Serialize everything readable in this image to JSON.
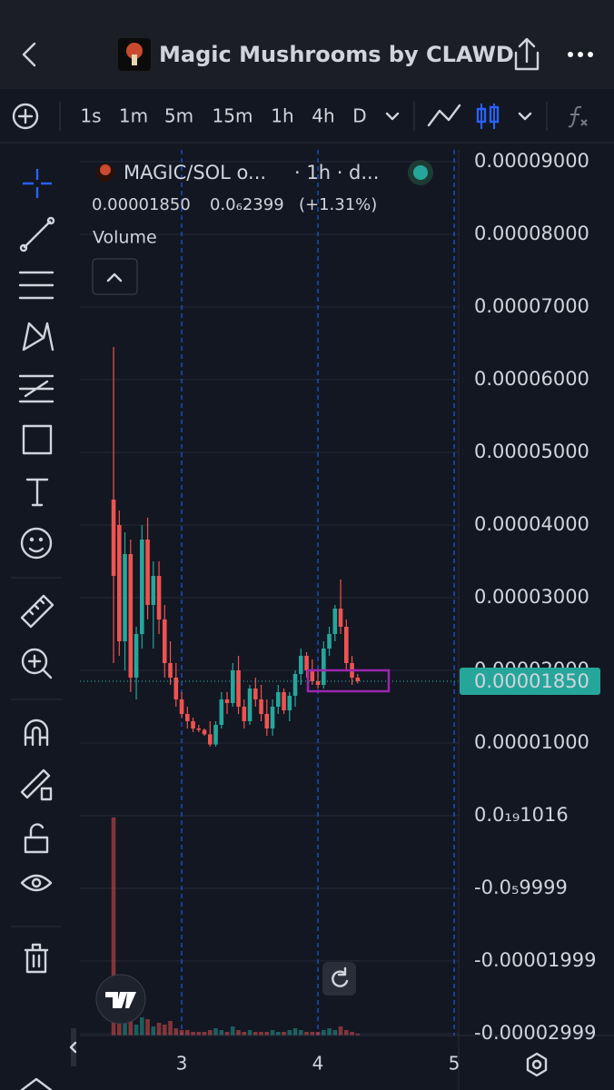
{
  "header": {
    "title": "Magic Mushrooms by CLAWD"
  },
  "toolbar": {
    "intervals": [
      {
        "label": "1s",
        "color": "#d1d4dc"
      },
      {
        "label": "1m",
        "color": "#d1d4dc"
      },
      {
        "label": "5m",
        "color": "#d1d4dc"
      },
      {
        "label": "15m",
        "color": "#d1d4dc"
      },
      {
        "label": "1h",
        "color": "#2962ff"
      },
      {
        "label": "4h",
        "color": "#d1d4dc"
      },
      {
        "label": "D",
        "color": "#d1d4dc"
      }
    ]
  },
  "chart_data": {
    "type": "candlestick",
    "symbol": "MAGIC/SOL o...",
    "timeframe": "· 1h · d...",
    "last": {
      "value": 1.85e-05,
      "label": "0.00001850"
    },
    "change": {
      "value": 2.399e-07,
      "label": "0.0₆2399"
    },
    "change_pct": {
      "value": 1.31,
      "label": "(+1.31%)"
    },
    "volume_title": "Volume",
    "price_tag": {
      "value": 1.85e-05,
      "label": "0.00001850",
      "color": "#26a69a"
    },
    "up_color": "#26a69a",
    "down_color": "#ef5350",
    "x": [
      2.5,
      2.5417,
      2.5833,
      2.625,
      2.6667,
      2.7083,
      2.75,
      2.7917,
      2.8333,
      2.875,
      2.9167,
      2.9583,
      3,
      3.0417,
      3.0833,
      3.125,
      3.1667,
      3.2083,
      3.25,
      3.2917,
      3.3333,
      3.375,
      3.4167,
      3.4583,
      3.5,
      3.5417,
      3.5833,
      3.625,
      3.6667,
      3.7083,
      3.75,
      3.7917,
      3.8333,
      3.875,
      3.9167,
      3.9583,
      4,
      4.0417,
      4.0833,
      4.125,
      4.1667,
      4.2083,
      4.25,
      4.2917
    ],
    "open": [
      4.35e-05,
      4e-05,
      2.4e-05,
      3.6e-05,
      1.9e-05,
      2.5e-05,
      3.8e-05,
      2.9e-05,
      3.3e-05,
      2.7e-05,
      2.1e-05,
      1.9e-05,
      1.6e-05,
      1.4e-05,
      1.3e-05,
      1.2e-05,
      1.18e-05,
      1.12e-05,
      9.8e-06,
      1.25e-05,
      1.6e-05,
      1.55e-05,
      2e-05,
      1.5e-05,
      1.3e-05,
      1.75e-05,
      1.6e-05,
      1.4e-05,
      1.2e-05,
      1.5e-05,
      1.7e-05,
      1.45e-05,
      1.65e-05,
      1.95e-05,
      2.2e-05,
      2e-05,
      1.85e-05,
      1.8e-05,
      2.3e-05,
      2.5e-05,
      2.85e-05,
      2.6e-05,
      2.1e-05,
      1.9e-05
    ],
    "high": [
      6.45e-05,
      4.2e-05,
      3.9e-05,
      3.8e-05,
      2.6e-05,
      4e-05,
      4.1e-05,
      3.5e-05,
      3.5e-05,
      2.9e-05,
      2.4e-05,
      2.1e-05,
      1.7e-05,
      1.5e-05,
      1.35e-05,
      1.25e-05,
      1.2e-05,
      1.3e-05,
      1.3e-05,
      1.7e-05,
      1.7e-05,
      2.1e-05,
      2.2e-05,
      1.6e-05,
      1.8e-05,
      1.9e-05,
      1.8e-05,
      1.6e-05,
      1.6e-05,
      1.8e-05,
      1.75e-05,
      1.7e-05,
      2e-05,
      2.3e-05,
      2.25e-05,
      2.15e-05,
      2e-05,
      2.4e-05,
      2.6e-05,
      2.9e-05,
      3.25e-05,
      2.7e-05,
      2.2e-05,
      1.95e-05
    ],
    "low": [
      2.1e-05,
      2.2e-05,
      2e-05,
      1.7e-05,
      1.6e-05,
      2.3e-05,
      2.7e-05,
      2.3e-05,
      2.5e-05,
      1.9e-05,
      1.8e-05,
      1.5e-05,
      1.35e-05,
      1.2e-05,
      1.15e-05,
      1.15e-05,
      1.1e-05,
      9.5e-06,
      9.5e-06,
      1.2e-05,
      1.4e-05,
      1.5e-05,
      1.4e-05,
      1.2e-05,
      1.25e-05,
      1.5e-05,
      1.3e-05,
      1.1e-05,
      1.1e-05,
      1.4e-05,
      1.4e-05,
      1.3e-05,
      1.5e-05,
      1.8e-05,
      1.9e-05,
      1.8e-05,
      1.75e-05,
      1.75e-05,
      2.2e-05,
      2.4e-05,
      2.5e-05,
      2e-05,
      1.8e-05,
      1.82e-05
    ],
    "close": [
      3.3e-05,
      2.4e-05,
      3.6e-05,
      1.9e-05,
      2.5e-05,
      3.8e-05,
      2.9e-05,
      3.3e-05,
      2.7e-05,
      2.1e-05,
      1.9e-05,
      1.6e-05,
      1.4e-05,
      1.3e-05,
      1.2e-05,
      1.18e-05,
      1.12e-05,
      9.8e-06,
      1.25e-05,
      1.6e-05,
      1.55e-05,
      2e-05,
      1.5e-05,
      1.3e-05,
      1.75e-05,
      1.6e-05,
      1.4e-05,
      1.2e-05,
      1.5e-05,
      1.7e-05,
      1.45e-05,
      1.65e-05,
      1.95e-05,
      2.2e-05,
      2e-05,
      1.85e-05,
      1.8e-05,
      2.3e-05,
      2.5e-05,
      2.85e-05,
      2.6e-05,
      2.1e-05,
      1.9e-05,
      1.85e-05
    ],
    "volume": [
      120,
      25,
      12,
      8,
      6,
      10,
      9,
      5,
      7,
      6,
      8,
      4,
      3,
      3,
      2,
      2,
      2,
      3,
      4,
      3,
      2,
      5,
      3,
      2,
      3,
      2,
      2,
      2,
      3,
      2,
      2,
      3,
      4,
      3,
      2,
      2,
      2,
      3,
      4,
      3,
      5,
      3,
      2,
      1
    ],
    "xlim": [
      2.253,
      5.033
    ],
    "xticks": [
      3,
      4,
      5
    ],
    "ylim": [
      -3.025e-05,
      9.1625e-05
    ],
    "yticks": [
      {
        "value": 9e-05,
        "label": "0.00009000"
      },
      {
        "value": 8e-05,
        "label": "0.00008000"
      },
      {
        "value": 7e-05,
        "label": "0.00007000"
      },
      {
        "value": 6e-05,
        "label": "0.00006000"
      },
      {
        "value": 5e-05,
        "label": "0.00005000"
      },
      {
        "value": 4e-05,
        "label": "0.00004000"
      },
      {
        "value": 3e-05,
        "label": "0.00003000"
      },
      {
        "value": 2e-05,
        "label": "0.00002000"
      },
      {
        "value": 1e-05,
        "label": "0.00001000"
      },
      {
        "value": 1.016e-20,
        "label": "0.0₁₉1016"
      },
      {
        "value": -9.999e-06,
        "label": "-0.0₅9999"
      },
      {
        "value": -1.999e-05,
        "label": "-0.00001999"
      },
      {
        "value": -2.999e-05,
        "label": "-0.00002999"
      }
    ],
    "grid": true
  }
}
